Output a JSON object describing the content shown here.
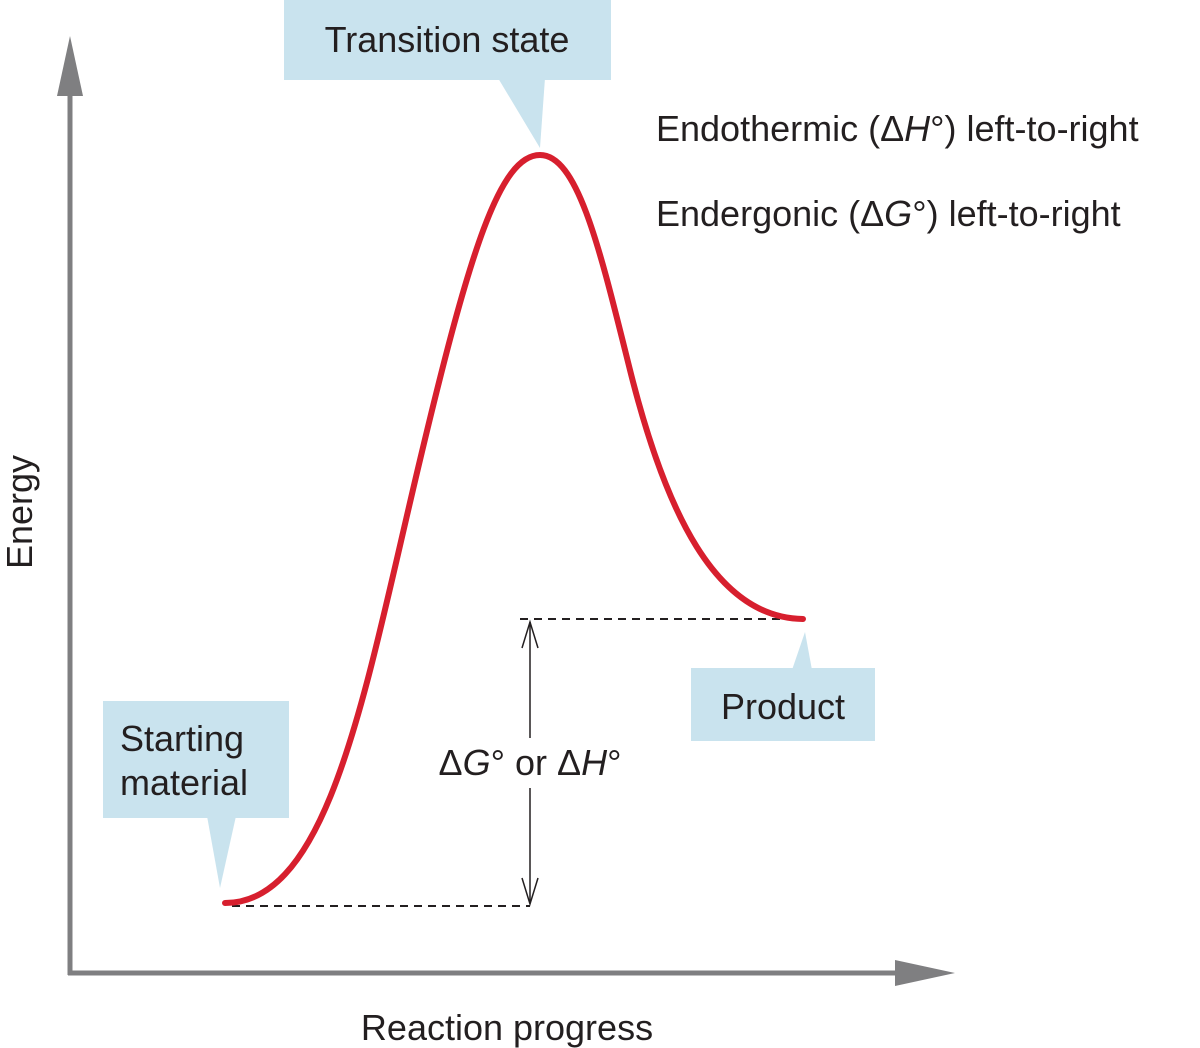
{
  "axes": {
    "y_label": "Energy",
    "x_label": "Reaction progress"
  },
  "callouts": {
    "transition_state": "Transition state",
    "starting_material_line1": "Starting",
    "starting_material_line2": "material",
    "product": "Product"
  },
  "annotations": {
    "endothermic": {
      "prefix": "Endothermic (",
      "delta": "Δ",
      "symbol": "H",
      "suffix": "°) left-to-right"
    },
    "endergonic": {
      "prefix": "Endergonic (",
      "delta": "Δ",
      "symbol": "G",
      "suffix": "°) left-to-right"
    },
    "difference": {
      "delta1": "Δ",
      "symbol1": "G",
      "middle": "° or ",
      "delta2": "Δ",
      "symbol2": "H",
      "suffix": "°"
    }
  },
  "colors": {
    "curve": "#d71f2e",
    "axis": "#7f7f81",
    "callout_fill": "#c9e3ee",
    "text": "#231f20"
  }
}
